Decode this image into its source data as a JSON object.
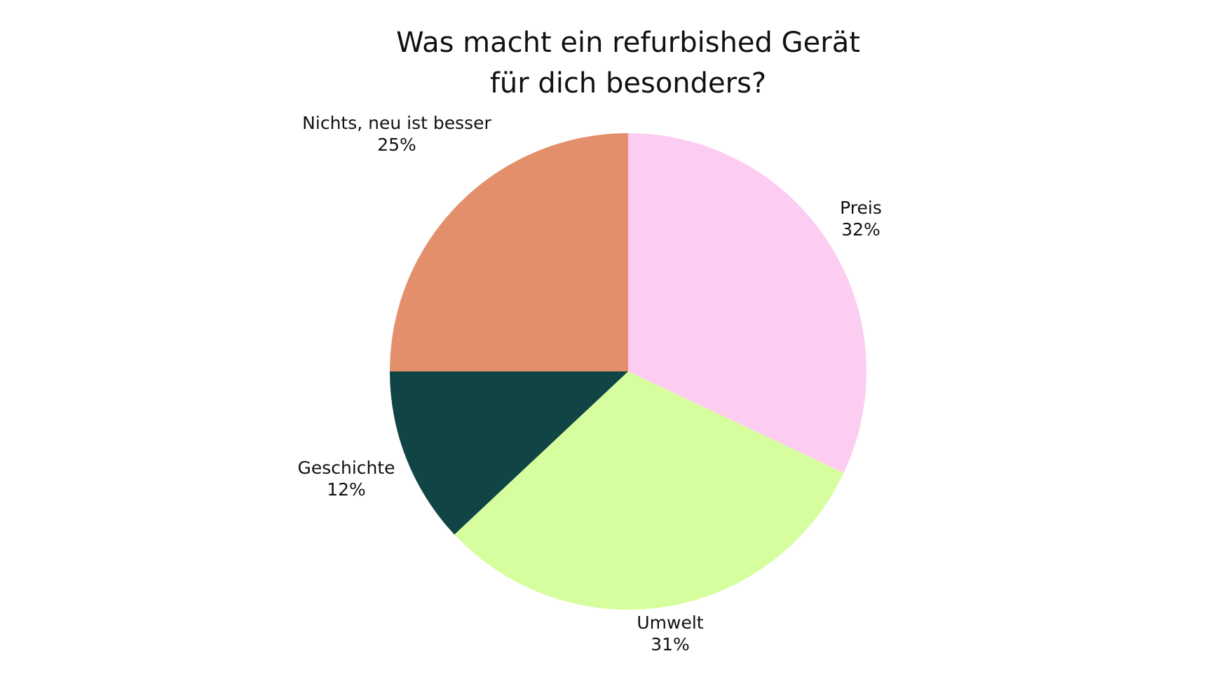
{
  "chart_data": {
    "type": "pie",
    "title_lines": [
      "Was macht ein refurbished Gerät",
      "für dich besonders?"
    ],
    "slices": [
      {
        "label": "Preis",
        "value": 32,
        "display_value": "32%",
        "color": "#FDCDF1"
      },
      {
        "label": "Umwelt",
        "value": 31,
        "display_value": "31%",
        "color": "#D7FE9E"
      },
      {
        "label": "Geschichte",
        "value": 12,
        "display_value": "12%",
        "color": "#114444"
      },
      {
        "label": "Nichts, neu ist besser",
        "value": 25,
        "display_value": "25%",
        "color": "#E48F6C"
      }
    ],
    "start_angle": "12 o'clock",
    "direction": "clockwise",
    "legend": "none"
  }
}
